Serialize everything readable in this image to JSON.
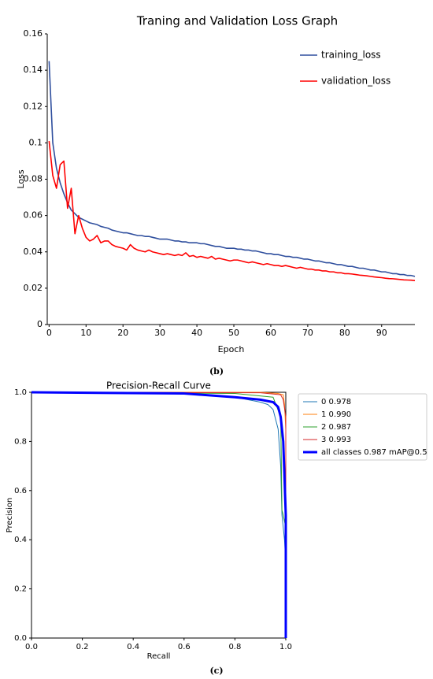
{
  "chart_data": [
    {
      "type": "line",
      "title": "Traning and Validation Loss Graph",
      "xlabel": "Epoch",
      "ylabel": "Loss",
      "caption": "(b)",
      "x": [
        0,
        1,
        2,
        3,
        4,
        5,
        6,
        7,
        8,
        9,
        10,
        11,
        12,
        13,
        14,
        15,
        16,
        17,
        18,
        19,
        20,
        21,
        22,
        23,
        24,
        25,
        26,
        27,
        28,
        29,
        30,
        31,
        32,
        33,
        34,
        35,
        36,
        37,
        38,
        39,
        40,
        41,
        42,
        43,
        44,
        45,
        46,
        47,
        48,
        49,
        50,
        51,
        52,
        53,
        54,
        55,
        56,
        57,
        58,
        59,
        60,
        61,
        62,
        63,
        64,
        65,
        66,
        67,
        68,
        69,
        70,
        71,
        72,
        73,
        74,
        75,
        76,
        77,
        78,
        79,
        80,
        81,
        82,
        83,
        84,
        85,
        86,
        87,
        88,
        89,
        90,
        91,
        92,
        93,
        94,
        95,
        96,
        97,
        98,
        99
      ],
      "series": [
        {
          "name": "training_loss",
          "color": "#2f4f9e",
          "values": [
            0.145,
            0.1,
            0.086,
            0.078,
            0.072,
            0.067,
            0.063,
            0.061,
            0.059,
            0.058,
            0.057,
            0.056,
            0.0555,
            0.055,
            0.054,
            0.0535,
            0.053,
            0.052,
            0.0515,
            0.051,
            0.0505,
            0.0505,
            0.05,
            0.0495,
            0.049,
            0.049,
            0.0485,
            0.0485,
            0.048,
            0.0475,
            0.047,
            0.047,
            0.047,
            0.0465,
            0.046,
            0.046,
            0.0455,
            0.0455,
            0.045,
            0.045,
            0.045,
            0.0445,
            0.0445,
            0.044,
            0.0435,
            0.043,
            0.043,
            0.0425,
            0.042,
            0.042,
            0.042,
            0.0415,
            0.0415,
            0.041,
            0.041,
            0.0405,
            0.0405,
            0.04,
            0.0395,
            0.039,
            0.039,
            0.0385,
            0.0385,
            0.038,
            0.0375,
            0.0375,
            0.037,
            0.037,
            0.0365,
            0.036,
            0.036,
            0.0355,
            0.035,
            0.035,
            0.0345,
            0.034,
            0.034,
            0.0335,
            0.033,
            0.033,
            0.0325,
            0.032,
            0.032,
            0.0315,
            0.031,
            0.031,
            0.0305,
            0.03,
            0.03,
            0.0295,
            0.029,
            0.029,
            0.0285,
            0.028,
            0.028,
            0.0275,
            0.0275,
            0.027,
            0.027,
            0.0265
          ]
        },
        {
          "name": "validation_loss",
          "color": "#ff0000",
          "values": [
            0.101,
            0.082,
            0.075,
            0.088,
            0.09,
            0.064,
            0.075,
            0.05,
            0.06,
            0.053,
            0.048,
            0.046,
            0.047,
            0.049,
            0.045,
            0.046,
            0.046,
            0.044,
            0.043,
            0.0425,
            0.042,
            0.041,
            0.044,
            0.042,
            0.041,
            0.0405,
            0.04,
            0.041,
            0.04,
            0.0395,
            0.039,
            0.0385,
            0.039,
            0.0385,
            0.038,
            0.0385,
            0.038,
            0.0395,
            0.0375,
            0.038,
            0.037,
            0.0375,
            0.037,
            0.0365,
            0.0375,
            0.036,
            0.0365,
            0.036,
            0.0355,
            0.035,
            0.0355,
            0.0355,
            0.035,
            0.0345,
            0.034,
            0.0345,
            0.034,
            0.0335,
            0.033,
            0.0335,
            0.033,
            0.0325,
            0.0325,
            0.032,
            0.0325,
            0.032,
            0.0315,
            0.031,
            0.0315,
            0.031,
            0.0305,
            0.0305,
            0.03,
            0.03,
            0.0295,
            0.0295,
            0.029,
            0.029,
            0.0285,
            0.0285,
            0.028,
            0.028,
            0.0278,
            0.0275,
            0.0272,
            0.027,
            0.0268,
            0.0265,
            0.0262,
            0.026,
            0.0258,
            0.0255,
            0.0253,
            0.0252,
            0.025,
            0.0248,
            0.0246,
            0.0245,
            0.0244,
            0.0242
          ]
        }
      ],
      "xlim": [
        -0.5,
        99
      ],
      "xticks": [
        0,
        10,
        20,
        30,
        40,
        50,
        60,
        70,
        80,
        90
      ],
      "ylim": [
        0,
        0.16
      ],
      "yticks": [
        0,
        0.02,
        0.04,
        0.06,
        0.08,
        0.1,
        0.12,
        0.14,
        0.16
      ],
      "legend": "upper right",
      "frame": false,
      "grid": false
    },
    {
      "type": "line",
      "title": "Precision-Recall Curve",
      "xlabel": "Recall",
      "ylabel": "Precision",
      "caption": "(c)",
      "series": [
        {
          "name": "0 0.978",
          "color": "#1f77b4",
          "linewidth": 1,
          "x": [
            0,
            0.5,
            0.7,
            0.8,
            0.85,
            0.9,
            0.93,
            0.95,
            0.97,
            0.98,
            0.985,
            0.99,
            0.995,
            1,
            1
          ],
          "values": [
            1,
            0.995,
            0.99,
            0.98,
            0.97,
            0.96,
            0.95,
            0.93,
            0.85,
            0.7,
            0.5,
            0.45,
            0.4,
            0.3,
            0
          ]
        },
        {
          "name": "1 0.990",
          "color": "#ff7f0e",
          "linewidth": 1,
          "x": [
            0,
            0.9,
            0.97,
            0.99,
            0.995,
            1,
            1
          ],
          "values": [
            1,
            1,
            0.995,
            0.99,
            0.95,
            0.85,
            0
          ]
        },
        {
          "name": "2 0.987",
          "color": "#2ca02c",
          "linewidth": 1,
          "x": [
            0,
            0.8,
            0.95,
            0.98,
            0.985,
            0.99,
            1,
            1
          ],
          "values": [
            1,
            0.995,
            0.98,
            0.9,
            0.52,
            0.5,
            0.45,
            0
          ]
        },
        {
          "name": "3 0.993",
          "color": "#d62728",
          "linewidth": 1,
          "x": [
            0,
            0.9,
            0.98,
            0.99,
            1,
            1
          ],
          "values": [
            1,
            0.998,
            0.99,
            0.97,
            0.9,
            0
          ]
        },
        {
          "name": "all classes 0.987 mAP@0.5",
          "color": "#0000ff",
          "linewidth": 3,
          "x": [
            0,
            0.6,
            0.8,
            0.9,
            0.95,
            0.97,
            0.98,
            0.985,
            0.99,
            1,
            1
          ],
          "values": [
            1,
            0.995,
            0.98,
            0.97,
            0.96,
            0.94,
            0.9,
            0.85,
            0.8,
            0.5,
            0
          ]
        }
      ],
      "xlim": [
        0,
        1
      ],
      "xticks": [
        {
          "value": 0,
          "label": "0.0"
        },
        0.2,
        0.4,
        0.6,
        0.8,
        {
          "value": 1,
          "label": "1.0"
        }
      ],
      "ylim": [
        0,
        1
      ],
      "yticks": [
        {
          "value": 0,
          "label": "0.0"
        },
        0.2,
        0.4,
        0.6,
        0.8,
        {
          "value": 1,
          "label": "1.0"
        }
      ],
      "legend": "outside right",
      "frame": true,
      "grid": false
    }
  ]
}
